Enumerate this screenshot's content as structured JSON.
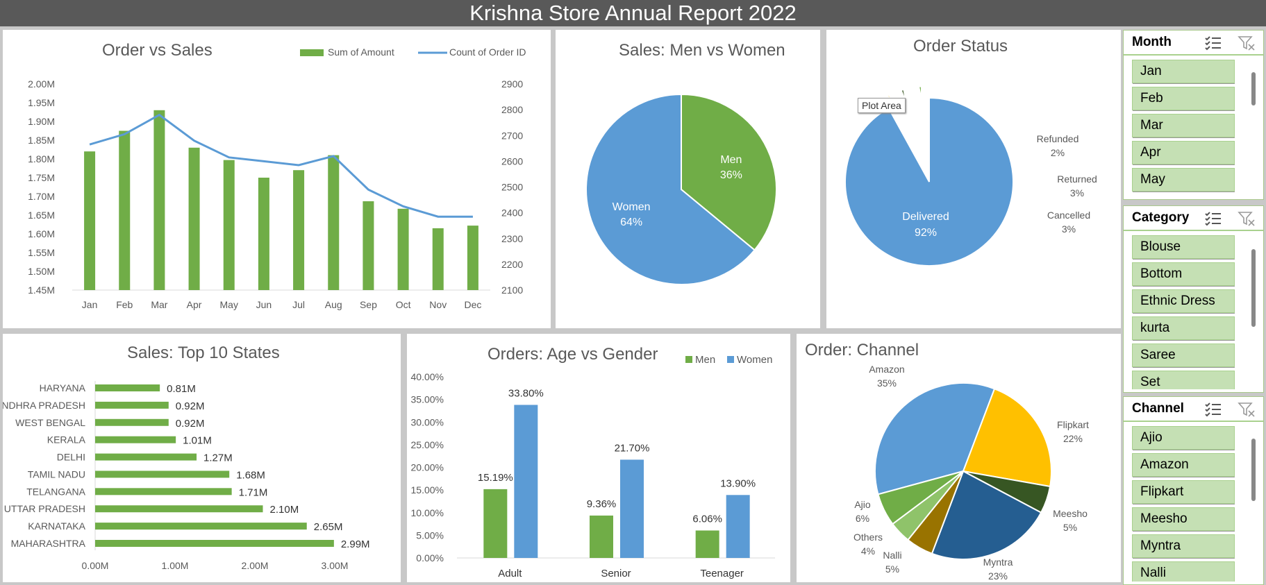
{
  "page": {
    "title": "Krishna Store Annual Report 2022"
  },
  "charts": {
    "order_vs_sales": {
      "title": "Order vs Sales",
      "legend": {
        "bar": "Sum of Amount",
        "line": "Count of Order ID"
      },
      "left_ticks": [
        "2.00M",
        "1.95M",
        "1.90M",
        "1.85M",
        "1.80M",
        "1.75M",
        "1.70M",
        "1.65M",
        "1.60M",
        "1.55M",
        "1.50M",
        "1.45M"
      ],
      "right_ticks": [
        "2900",
        "2800",
        "2700",
        "2600",
        "2500",
        "2400",
        "2300",
        "2200",
        "2100"
      ]
    },
    "men_vs_women": {
      "title": "Sales: Men vs Women"
    },
    "order_status": {
      "title": "Order Status",
      "tooltip": "Plot Area"
    },
    "top_states": {
      "title": "Sales: Top 10 States"
    },
    "age_gender": {
      "title": "Orders: Age vs  Gender"
    },
    "channel": {
      "title": "Order: Channel"
    }
  },
  "colors": {
    "green": "#70ad47",
    "blue": "#5b9bd5",
    "gold": "#ffc000",
    "dark_green": "#375623",
    "dark_blue": "#255e91",
    "olive": "#997300",
    "light_green": "#8fc36a"
  },
  "chart_data": [
    {
      "type": "bar",
      "title": "Order vs Sales",
      "categories": [
        "Jan",
        "Feb",
        "Mar",
        "Apr",
        "May",
        "Jun",
        "Jul",
        "Aug",
        "Sep",
        "Oct",
        "Nov",
        "Dec"
      ],
      "series": [
        {
          "name": "Sum of Amount",
          "axis": "left",
          "values": [
            1.82,
            1.875,
            1.93,
            1.83,
            1.797,
            1.75,
            1.77,
            1.81,
            1.687,
            1.667,
            1.615,
            1.622
          ]
        },
        {
          "name": "Count of Order ID",
          "type": "line",
          "axis": "right",
          "values": [
            2665,
            2705,
            2780,
            2680,
            2615,
            2600,
            2585,
            2620,
            2490,
            2425,
            2385,
            2385
          ]
        }
      ],
      "ylim": [
        1.45,
        2.0
      ],
      "y2lim": [
        2100,
        2900
      ],
      "legend": "top-right"
    },
    {
      "type": "pie",
      "title": "Sales: Men vs Women",
      "labels": [
        "Men",
        "Women"
      ],
      "values": [
        36,
        64
      ]
    },
    {
      "type": "pie",
      "title": "Order Status",
      "labels": [
        "Delivered",
        "Refunded",
        "Returned",
        "Cancelled"
      ],
      "values": [
        92,
        2,
        3,
        3
      ]
    },
    {
      "type": "bar",
      "orientation": "horizontal",
      "title": "Sales: Top 10 States",
      "categories": [
        "HARYANA",
        "ANDHRA PRADESH",
        "WEST BENGAL",
        "KERALA",
        "DELHI",
        "TAMIL NADU",
        "TELANGANA",
        "UTTAR PRADESH",
        "KARNATAKA",
        "MAHARASHTRA"
      ],
      "values": [
        0.81,
        0.92,
        0.92,
        1.01,
        1.27,
        1.68,
        1.71,
        2.1,
        2.65,
        2.99
      ],
      "value_labels": [
        "0.81M",
        "0.92M",
        "0.92M",
        "1.01M",
        "1.27M",
        "1.68M",
        "1.71M",
        "2.10M",
        "2.65M",
        "2.99M"
      ],
      "x_ticks": [
        "0.00M",
        "1.00M",
        "2.00M",
        "3.00M"
      ],
      "xlim": [
        0,
        3.0
      ]
    },
    {
      "type": "bar",
      "title": "Orders: Age vs  Gender",
      "categories": [
        "Adult",
        "Senior",
        "Teenager"
      ],
      "series": [
        {
          "name": "Men",
          "values": [
            15.19,
            9.36,
            6.06
          ],
          "labels": [
            "15.19%",
            "9.36%",
            "6.06%"
          ]
        },
        {
          "name": "Women",
          "values": [
            33.8,
            21.7,
            13.9
          ],
          "labels": [
            "33.80%",
            "21.70%",
            "13.90%"
          ]
        }
      ],
      "y_ticks": [
        "40.00%",
        "35.00%",
        "30.00%",
        "25.00%",
        "20.00%",
        "15.00%",
        "10.00%",
        "5.00%",
        "0.00%"
      ],
      "ylim": [
        0,
        40
      ],
      "legend": "top-right"
    },
    {
      "type": "pie",
      "title": "Order: Channel",
      "labels": [
        "Amazon",
        "Flipkart",
        "Meesho",
        "Myntra",
        "Nalli",
        "Others",
        "Ajio"
      ],
      "values": [
        35,
        22,
        5,
        23,
        5,
        4,
        6
      ]
    }
  ],
  "slicers": {
    "month": {
      "title": "Month",
      "items": [
        "Jan",
        "Feb",
        "Mar",
        "Apr",
        "May"
      ]
    },
    "category": {
      "title": "Category",
      "items": [
        "Blouse",
        "Bottom",
        "Ethnic Dress",
        "kurta",
        "Saree",
        "Set"
      ]
    },
    "channel": {
      "title": "Channel",
      "items": [
        "Ajio",
        "Amazon",
        "Flipkart",
        "Meesho",
        "Myntra",
        "Nalli"
      ]
    }
  }
}
